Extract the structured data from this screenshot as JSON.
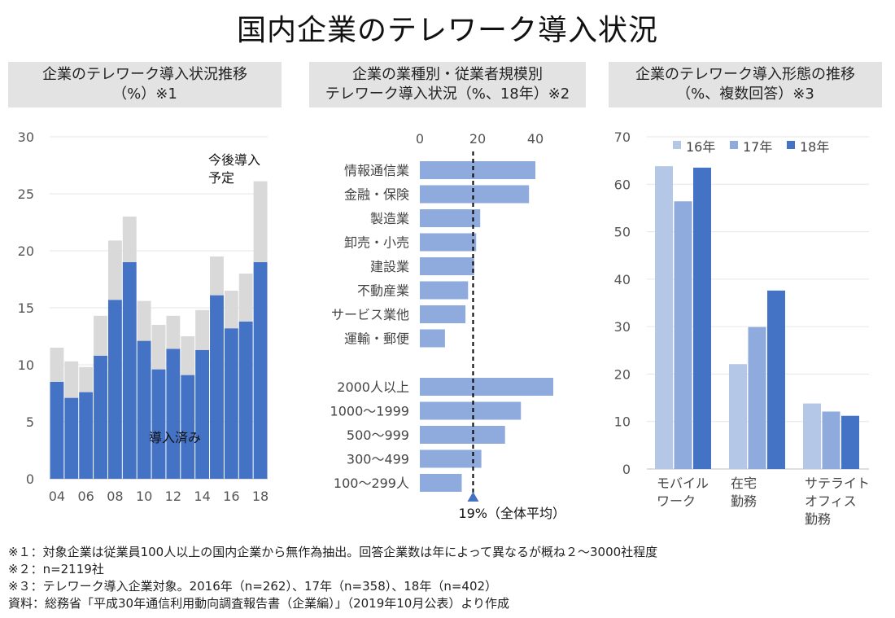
{
  "title": "国内企業のテレワーク導入状況",
  "panels": {
    "p1": {
      "line1": "企業のテレワーク導入状況推移",
      "line2": "（%）※1"
    },
    "p2": {
      "line1": "企業の業種別・従業者規模別",
      "line2": "テレワーク導入状況（%、18年）※2"
    },
    "p3": {
      "line1": "企業のテレワーク導入形態の推移",
      "line2": "（%、複数回答）※3"
    }
  },
  "chart_data": [
    {
      "type": "bar",
      "stacked": true,
      "title": "企業のテレワーク導入状況推移（%）※1",
      "categories": [
        "04",
        "05",
        "06",
        "07",
        "08",
        "09",
        "10",
        "11",
        "12",
        "13",
        "14",
        "15",
        "16",
        "17",
        "18"
      ],
      "tick_labels": [
        "04",
        "06",
        "08",
        "10",
        "12",
        "14",
        "16",
        "18"
      ],
      "yticks": [
        0,
        5,
        10,
        15,
        20,
        25,
        30
      ],
      "ylim": [
        0,
        30
      ],
      "series": [
        {
          "name": "導入済み",
          "color": "#4472c4",
          "values": [
            8.5,
            7.1,
            7.6,
            10.8,
            15.7,
            19.0,
            12.1,
            9.6,
            11.4,
            9.1,
            11.3,
            16.1,
            13.2,
            13.8,
            19.0
          ]
        },
        {
          "name": "今後導入予定",
          "color": "#d9d9d9",
          "values": [
            3.0,
            3.2,
            2.2,
            3.5,
            5.2,
            4.0,
            3.5,
            3.9,
            2.9,
            3.4,
            3.5,
            3.4,
            3.3,
            4.2,
            7.1
          ]
        }
      ],
      "annotations": {
        "planned_l1": "今後導入",
        "planned_l2": "予定",
        "adopted": "導入済み"
      }
    },
    {
      "type": "bar",
      "orientation": "horizontal",
      "title": "企業の業種別・従業者規模別テレワーク導入状況（%、18年）※2",
      "xticks": [
        0,
        20,
        40
      ],
      "xlim": [
        0,
        48
      ],
      "color": "#8faadc",
      "groups": [
        {
          "categories": [
            "情報通信業",
            "金融・保険",
            "製造業",
            "卸売・小売",
            "建設業",
            "不動産業",
            "サービス業他",
            "運輸・郵便"
          ],
          "values": [
            40.0,
            37.8,
            20.9,
            19.5,
            18.8,
            16.7,
            15.8,
            8.7
          ]
        },
        {
          "categories": [
            "2000人以上",
            "1000～1999",
            "500～999",
            "300～499",
            "100～299人"
          ],
          "values": [
            46.2,
            35.0,
            29.5,
            21.3,
            14.5
          ]
        }
      ],
      "average": {
        "value": 19,
        "label": "19%（全体平均）"
      }
    },
    {
      "type": "bar",
      "title": "企業のテレワーク導入形態の推移（%、複数回答）※3",
      "categories": [
        [
          "モバイル",
          "ワーク"
        ],
        [
          "在宅",
          "勤務"
        ],
        [
          "サテライト",
          "オフィス",
          "勤務"
        ]
      ],
      "yticks": [
        0,
        10,
        20,
        30,
        40,
        50,
        60,
        70
      ],
      "ylim": [
        0,
        70
      ],
      "series": [
        {
          "name": "16年",
          "color": "#b4c7e7",
          "values": [
            63.8,
            22.1,
            13.8
          ]
        },
        {
          "name": "17年",
          "color": "#8faadc",
          "values": [
            56.4,
            29.9,
            12.1
          ]
        },
        {
          "name": "18年",
          "color": "#4472c4",
          "values": [
            63.5,
            37.6,
            11.2
          ]
        }
      ]
    }
  ],
  "notes": [
    "※１：対象企業は従業員100人以上の国内企業から無作為抽出。回答企業数は年によって異なるが概ね２～3000社程度",
    "※２：n=2119社",
    "※３：テレワーク導入企業対象。2016年（n=262）、17年（n=358）、18年（n=402）",
    "資料：総務省「平成30年通信利用動向調査報告書（企業編）」（2019年10月公表）より作成"
  ]
}
